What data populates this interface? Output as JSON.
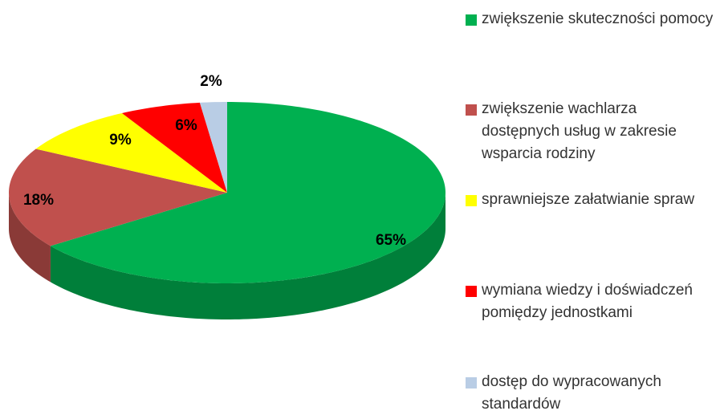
{
  "chart_data": {
    "type": "pie",
    "categories": [
      "zwiększenie skuteczności pomocy",
      "zwiększenie wachlarza dostępnych usług w zakresie wsparcia rodziny",
      "sprawniejsze załatwianie spraw",
      "wymiana wiedzy i doświadczeń pomiędzy jednostkami",
      "dostęp do wypracowanych standardów"
    ],
    "values": [
      65,
      18,
      9,
      6,
      2
    ],
    "value_labels": [
      "65%",
      "18%",
      "9%",
      "6%",
      "2%"
    ],
    "colors": [
      "#00b050",
      "#c0504d",
      "#ffff00",
      "#ff0000",
      "#b9cde5"
    ],
    "legend": "right"
  }
}
